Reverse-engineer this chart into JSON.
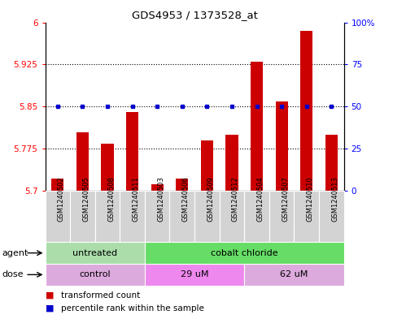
{
  "title": "GDS4953 / 1373528_at",
  "samples": [
    "GSM1240502",
    "GSM1240505",
    "GSM1240508",
    "GSM1240511",
    "GSM1240503",
    "GSM1240506",
    "GSM1240509",
    "GSM1240512",
    "GSM1240504",
    "GSM1240507",
    "GSM1240510",
    "GSM1240513"
  ],
  "red_values": [
    5.722,
    5.805,
    5.785,
    5.84,
    5.712,
    5.722,
    5.79,
    5.8,
    5.93,
    5.86,
    5.985,
    5.8
  ],
  "blue_values": [
    50,
    50,
    50,
    50,
    50,
    50,
    50,
    50,
    50,
    50,
    50,
    50
  ],
  "ylim_left": [
    5.7,
    6.0
  ],
  "ylim_right": [
    0,
    100
  ],
  "yticks_left": [
    5.7,
    5.775,
    5.85,
    5.925,
    6.0
  ],
  "yticks_right": [
    0,
    25,
    50,
    75,
    100
  ],
  "ytick_labels_left": [
    "5.7",
    "5.775",
    "5.85",
    "5.925",
    "6"
  ],
  "ytick_labels_right": [
    "0",
    "25",
    "50",
    "75",
    "100%"
  ],
  "hlines": [
    5.775,
    5.85,
    5.925
  ],
  "agent_groups": [
    {
      "label": "untreated",
      "start": 0,
      "end": 4,
      "color": "#aaddaa"
    },
    {
      "label": "cobalt chloride",
      "start": 4,
      "end": 12,
      "color": "#66dd66"
    }
  ],
  "dose_groups": [
    {
      "label": "control",
      "start": 0,
      "end": 4,
      "color": "#ddaadd"
    },
    {
      "label": "29 uM",
      "start": 4,
      "end": 8,
      "color": "#ee88ee"
    },
    {
      "label": "62 uM",
      "start": 8,
      "end": 12,
      "color": "#ddaadd"
    }
  ],
  "legend_red": "transformed count",
  "legend_blue": "percentile rank within the sample",
  "bar_color": "#CC0000",
  "dot_color": "#0000CC",
  "bar_width": 0.5,
  "background_color": "#ffffff",
  "sample_bg": "#d3d3d3"
}
